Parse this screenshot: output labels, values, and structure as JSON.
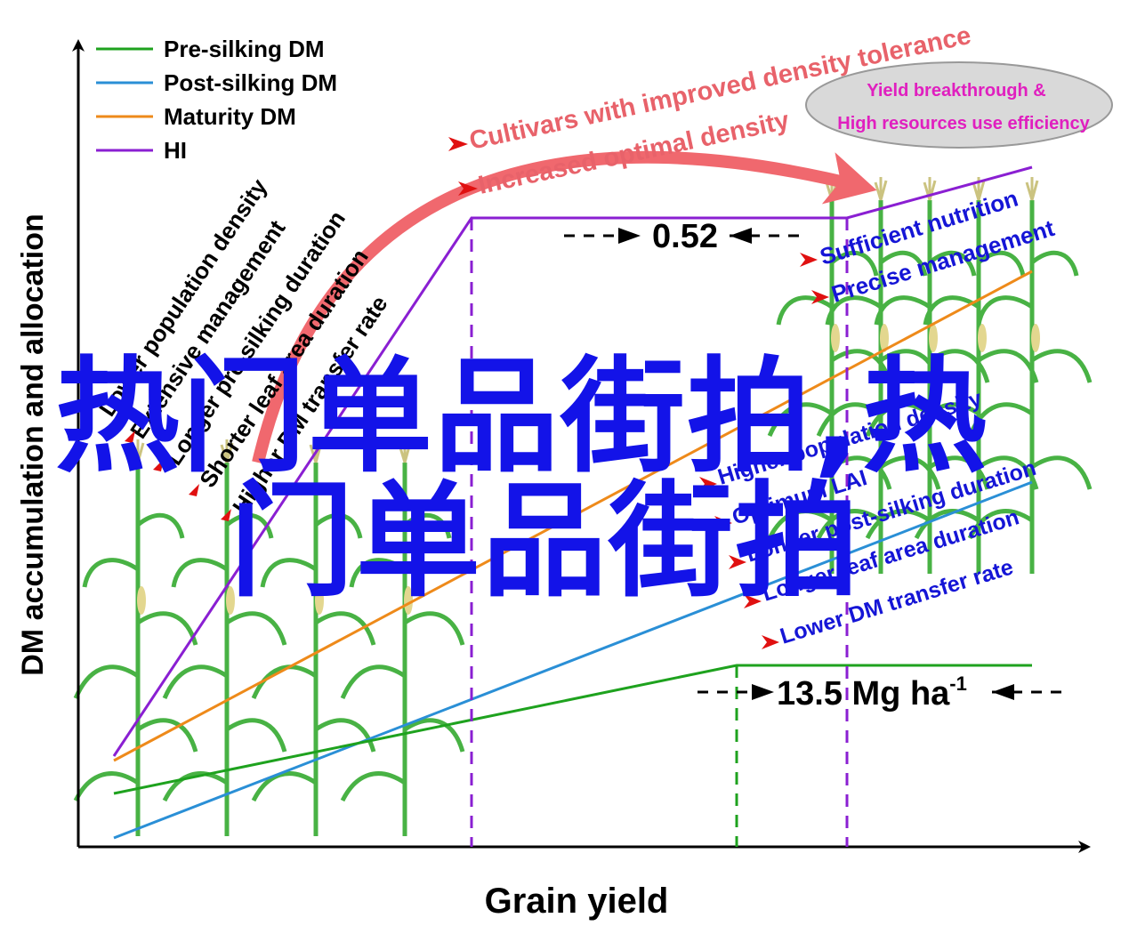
{
  "axes": {
    "y_label": "DM accumulation and allocation",
    "x_label": "Grain yield"
  },
  "legend": [
    {
      "label": "Pre-silking DM",
      "color": "#1ea21e"
    },
    {
      "label": "Post-silking DM",
      "color": "#2a8fd6"
    },
    {
      "label": "Maturity DM",
      "color": "#ee8a1a"
    },
    {
      "label": "HI",
      "color": "#8a1fd2"
    }
  ],
  "left_factors": [
    "Lower population density",
    "Extensive management",
    "Longer pre-silking duration",
    "Shorter leaf area duration",
    "Higher DM transfer rate"
  ],
  "top_factors": [
    "Cultivars with improved density tolerance",
    "Increased optimal density"
  ],
  "ellipse": {
    "line1": "Yield breakthrough &",
    "line2": "High resources use efficiency"
  },
  "right_upper_factors": [
    "Sufficient nutrition",
    "Precise management"
  ],
  "right_lower_factors": [
    "Higher population density",
    "Optimum LAI",
    "Longer post-silking duration",
    "Longer leaf area duration",
    "Lower DM transfer rate"
  ],
  "hi_value": "0.52",
  "dm_value": "13.5 Mg ha",
  "dm_value_sup": "-1",
  "overlay_text": {
    "line1": "热门单品街拍,热",
    "line2": "门单品街拍"
  },
  "colors": {
    "factor_text_left": "#000000",
    "factor_text_red": "#e8626a",
    "factor_text_blue": "#1515d6",
    "ellipse_text": "#e01fbf",
    "ellipse_fill": "#d9d9d9",
    "arrow_red": "#f0686e",
    "plant_green": "#3fae3a"
  }
}
